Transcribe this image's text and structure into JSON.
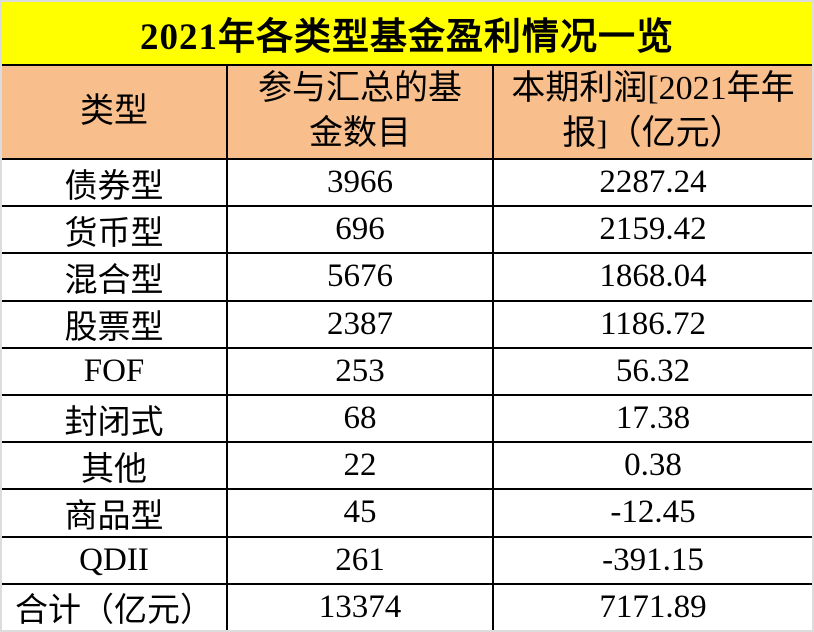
{
  "title": "2021年各类型基金盈利情况一览",
  "colors": {
    "title_bg": "#FFFF00",
    "header_bg": "#F8BE8C",
    "row_bg": "#FFFFFF",
    "grid_line": "#000000",
    "outer_border": "#DCDCDC",
    "text": "#000000"
  },
  "chart_data": {
    "type": "table",
    "title": "2021年各类型基金盈利情况一览",
    "columns": [
      "类型",
      "参与汇总的基金数目",
      "本期利润[2021年年报]（亿元）"
    ],
    "rows": [
      [
        "债券型",
        3966,
        "2287.24"
      ],
      [
        "货币型",
        696,
        "2159.42"
      ],
      [
        "混合型",
        5676,
        "1868.04"
      ],
      [
        "股票型",
        2387,
        "1186.72"
      ],
      [
        "FOF",
        253,
        "56.32"
      ],
      [
        "封闭式",
        68,
        "17.38"
      ],
      [
        "其他",
        22,
        "0.38"
      ],
      [
        "商品型",
        45,
        "-12.45"
      ],
      [
        "QDII",
        261,
        "-391.15"
      ],
      [
        "合计（亿元）",
        13374,
        "7171.89"
      ]
    ],
    "layout": {
      "title_band": "yellow, full width, bold centered text",
      "header_band": "orange, wrapped centered text",
      "grid": "2px black internal lines, light gray outer border",
      "legend_position": "none",
      "grid_on": true
    }
  }
}
